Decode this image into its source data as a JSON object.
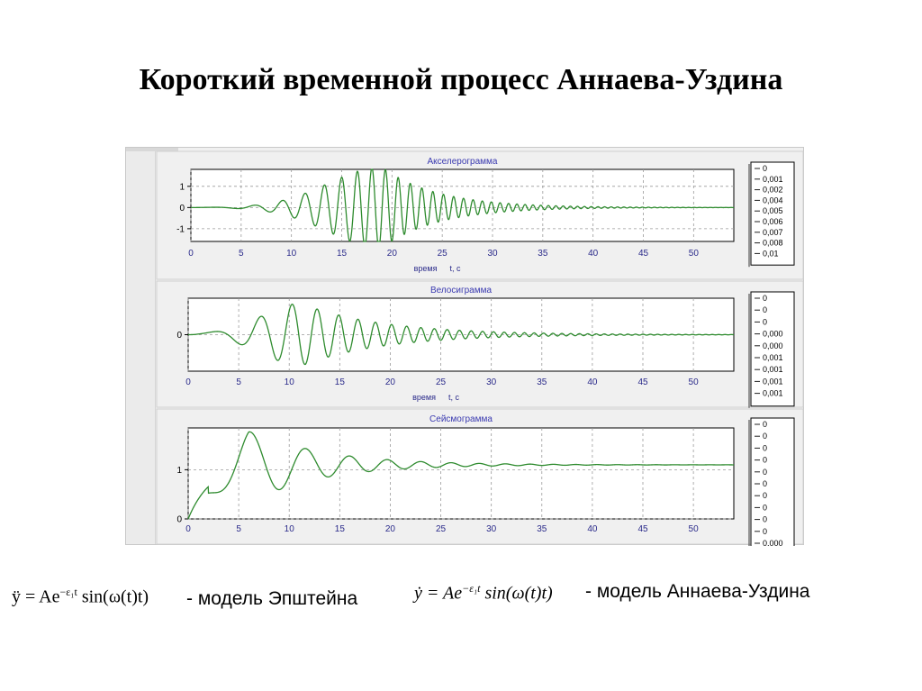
{
  "title": "Короткий временной процесс Аннаева-Уздина",
  "chart_data": [
    {
      "type": "line",
      "title": "Акселерограмма",
      "xlabel_word": "время",
      "xlabel_var": "t, c",
      "x_ticks": [
        "0",
        "5",
        "10",
        "15",
        "20",
        "25",
        "30",
        "35",
        "40",
        "45",
        "50"
      ],
      "y_ticks": [
        "1",
        "0",
        "-1"
      ],
      "xlim": [
        0,
        54
      ],
      "ylim": [
        -1.6,
        1.8
      ],
      "grid": true,
      "line_color": "#2e8b2e",
      "legend": [
        "0",
        "0,001",
        "0,002",
        "0,004",
        "0,005",
        "0,006",
        "0,007",
        "0,008",
        "0,01"
      ],
      "signal": {
        "kind": "accel",
        "A": 1.9,
        "t_peak": 19,
        "t_end": 54
      }
    },
    {
      "type": "line",
      "title": "Велосиграмма",
      "xlabel_word": "время",
      "xlabel_var": "t, c",
      "x_ticks": [
        "0",
        "5",
        "10",
        "15",
        "20",
        "25",
        "30",
        "35",
        "40",
        "45",
        "50"
      ],
      "y_ticks": [
        "0"
      ],
      "xlim": [
        0,
        54
      ],
      "ylim": [
        -1.2,
        1.2
      ],
      "grid": true,
      "line_color": "#2e8b2e",
      "legend": [
        "0",
        "0",
        "0",
        "0,000",
        "0,000",
        "0,001",
        "0,001",
        "0,001",
        "0,001"
      ],
      "signal": {
        "kind": "veloc",
        "A": 1.05,
        "t_end": 54
      }
    },
    {
      "type": "line",
      "title": "Сейсмограмма",
      "xlabel_word": "",
      "xlabel_var": "",
      "x_ticks": [
        "0",
        "5",
        "10",
        "15",
        "20",
        "25",
        "30",
        "35",
        "40",
        "45",
        "50"
      ],
      "y_ticks": [
        "1",
        "0"
      ],
      "xlim": [
        0,
        54
      ],
      "ylim": [
        0,
        1.85
      ],
      "grid": true,
      "line_color": "#2e8b2e",
      "legend": [
        "0",
        "0",
        "0",
        "0",
        "0",
        "0",
        "0",
        "0",
        "0",
        "0",
        "0,000"
      ],
      "signal": {
        "kind": "displ",
        "t_end": 54
      }
    }
  ],
  "formulas": {
    "epstein": {
      "lhs": "ÿ = Ae",
      "exp": "−ε₁t",
      "rhs": " sin(ω(t)t)",
      "caption": "- модель Эпштейна"
    },
    "annaev": {
      "lhs": "ẏ = Ae",
      "exp": "−ε₁t",
      "rhs": " sin(ω(t)t)",
      "caption": "- модель Аннаева-Уздина"
    }
  }
}
